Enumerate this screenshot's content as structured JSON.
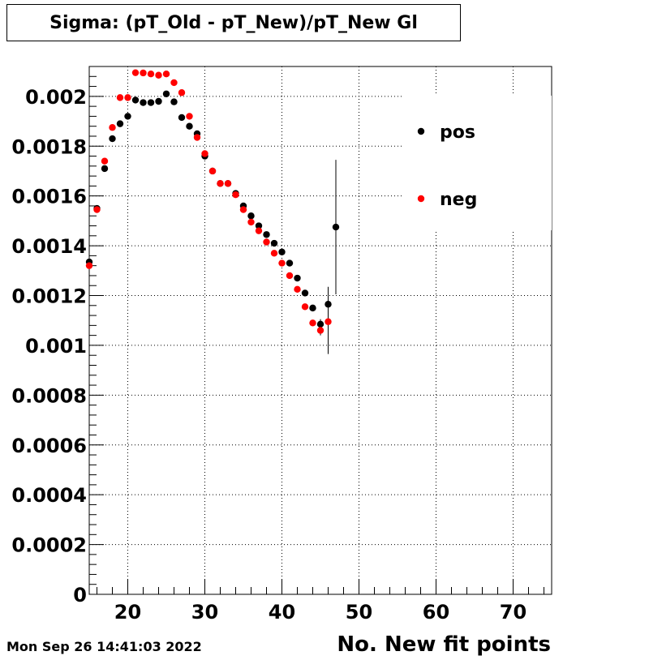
{
  "chart_data": {
    "type": "scatter",
    "title": "Sigma: (pT_Old - pT_New)/pT_New Gl",
    "xlabel": "No. New fit points",
    "ylabel": "",
    "xlim": [
      15,
      75
    ],
    "ylim": [
      0,
      0.00212
    ],
    "x_ticks": [
      20,
      30,
      40,
      50,
      60,
      70
    ],
    "y_ticks": [
      0,
      0.0002,
      0.0004,
      0.0006,
      0.0008,
      0.001,
      0.0012,
      0.0014,
      0.0016,
      0.0018,
      0.002
    ],
    "y_tick_labels": [
      "0",
      "0.0002",
      "0.0004",
      "0.0006",
      "0.0008",
      "0.001",
      "0.0012",
      "0.0014",
      "0.0016",
      "0.0018",
      "0.002"
    ],
    "grid": true,
    "legend_position": "top-right",
    "series": [
      {
        "name": "pos",
        "color": "#000000",
        "x": [
          15,
          16,
          17,
          18,
          19,
          20,
          21,
          22,
          23,
          24,
          25,
          26,
          27,
          28,
          29,
          30,
          31,
          32,
          33,
          34,
          35,
          36,
          37,
          38,
          39,
          40,
          41,
          42,
          43,
          44,
          45,
          46,
          47
        ],
        "y": [
          0.001335,
          0.00155,
          0.00171,
          0.00183,
          0.00189,
          0.00192,
          0.001985,
          0.001975,
          0.001975,
          0.00198,
          0.00201,
          0.001978,
          0.001915,
          0.00188,
          0.00185,
          0.00176,
          0.0017,
          0.00165,
          0.00165,
          0.00161,
          0.00156,
          0.00152,
          0.00148,
          0.001445,
          0.00141,
          0.001375,
          0.00133,
          0.00127,
          0.00121,
          0.00115,
          0.001085,
          0.001165,
          0.001475
        ],
        "err": [
          1e-05,
          1e-05,
          1e-05,
          1e-05,
          1e-05,
          1e-05,
          1e-05,
          1e-05,
          1e-05,
          1e-05,
          1e-05,
          1e-05,
          1e-05,
          1e-05,
          1e-05,
          1e-05,
          1e-05,
          1e-05,
          1e-05,
          1e-05,
          1e-05,
          1e-05,
          1e-05,
          1e-05,
          1e-05,
          1e-05,
          1e-05,
          1e-05,
          1e-05,
          1e-05,
          2e-05,
          7e-05,
          0.00027
        ]
      },
      {
        "name": "neg",
        "color": "#ff0000",
        "x": [
          15,
          16,
          17,
          18,
          19,
          20,
          21,
          22,
          23,
          24,
          25,
          26,
          27,
          28,
          29,
          30,
          31,
          32,
          33,
          34,
          35,
          36,
          37,
          38,
          39,
          40,
          41,
          42,
          43,
          44,
          45,
          46
        ],
        "y": [
          0.00132,
          0.001545,
          0.00174,
          0.001875,
          0.001995,
          0.001995,
          0.002095,
          0.002094,
          0.00209,
          0.002085,
          0.00209,
          0.002055,
          0.002015,
          0.00192,
          0.001835,
          0.00177,
          0.0017,
          0.00165,
          0.00165,
          0.001605,
          0.001545,
          0.001495,
          0.00146,
          0.001415,
          0.00137,
          0.00133,
          0.00128,
          0.001225,
          0.001155,
          0.00109,
          0.00106,
          0.001095
        ],
        "err": [
          1e-05,
          1e-05,
          1e-05,
          1e-05,
          1e-05,
          1e-05,
          1e-05,
          1e-05,
          1e-05,
          1e-05,
          1e-05,
          1e-05,
          1e-05,
          1e-05,
          1e-05,
          1e-05,
          1e-05,
          1e-05,
          1e-05,
          1e-05,
          1e-05,
          1e-05,
          1e-05,
          1e-05,
          1e-05,
          1e-05,
          1e-05,
          1e-05,
          1e-05,
          1e-05,
          2e-05,
          0.00013
        ]
      }
    ]
  },
  "footer": {
    "datestamp": "Mon Sep 26 14:41:03 2022"
  }
}
